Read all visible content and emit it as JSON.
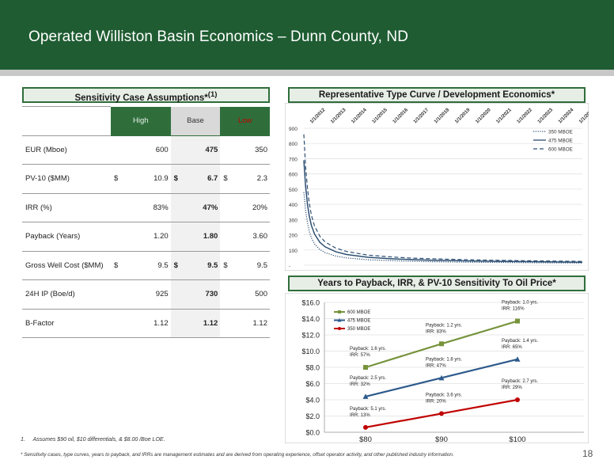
{
  "header": {
    "title": "Operated Williston Basin Economics – Dunn County, ND"
  },
  "assumptions": {
    "title": "Sensitivity Case Assumptions*",
    "title_sup": "(1)",
    "columns": [
      "High",
      "Base",
      "Low"
    ],
    "rows": [
      {
        "label": "EUR (Mboe)",
        "high": "600",
        "base": "475",
        "low": "350",
        "currency": false
      },
      {
        "label": "PV-10 ($MM)",
        "high": "10.9",
        "base": "6.7",
        "low": "2.3",
        "currency": true,
        "currency_symbol": "$"
      },
      {
        "label": "IRR (%)",
        "high": "83%",
        "base": "47%",
        "low": "20%",
        "currency": false
      },
      {
        "label": "Payback (Years)",
        "high": "1.20",
        "base": "1.80",
        "low": "3.60",
        "currency": false
      },
      {
        "label": "Gross Well Cost ($MM)",
        "high": "9.5",
        "base": "9.5",
        "low": "9.5",
        "currency": true,
        "currency_symbol": "$"
      },
      {
        "label": "24H IP (Boe/d)",
        "high": "925",
        "base": "730",
        "low": "500",
        "currency": false
      },
      {
        "label": "B-Factor",
        "high": "1.12",
        "base": "1.12",
        "low": "1.12",
        "currency": false
      }
    ]
  },
  "type_curve": {
    "title": "Representative Type Curve / Development Economics*"
  },
  "payback": {
    "title": "Years to Payback, IRR, & PV-10 Sensitivity To Oil Price*"
  },
  "chart_data": [
    {
      "type": "line",
      "x_tick_labels": [
        "1/1/2012",
        "1/1/2013",
        "1/1/2014",
        "1/1/2015",
        "1/1/2016",
        "1/1/2017",
        "1/1/2018",
        "1/1/2019",
        "1/1/2020",
        "1/1/2021",
        "1/1/2022",
        "1/1/2023",
        "1/1/2024",
        "1/1/2025"
      ],
      "y_ticks": [
        "-",
        "100",
        "200",
        "300",
        "400",
        "500",
        "600",
        "700",
        "800",
        "900"
      ],
      "ylim": [
        0,
        900
      ],
      "x_years": [
        0,
        0.083,
        0.17,
        0.25,
        0.35,
        0.5,
        0.75,
        1,
        1.5,
        2,
        3,
        4,
        5,
        6,
        8,
        10,
        13
      ],
      "series": [
        {
          "name": "350 MBOE",
          "style": "dotted",
          "color": "#2d4f73",
          "values": [
            480,
            360,
            280,
            225,
            180,
            140,
            102,
            82,
            60,
            48,
            36,
            30,
            26,
            23,
            19,
            17,
            14
          ]
        },
        {
          "name": "475 MBOE",
          "style": "solid",
          "color": "#2d4f73",
          "values": [
            690,
            520,
            400,
            325,
            262,
            205,
            150,
            120,
            88,
            70,
            52,
            43,
            37,
            33,
            27,
            24,
            20
          ]
        },
        {
          "name": "600 MBOE",
          "style": "dashed",
          "color": "#2d4f73",
          "values": [
            860,
            650,
            505,
            410,
            330,
            258,
            190,
            152,
            112,
            90,
            66,
            55,
            47,
            42,
            35,
            30,
            25
          ]
        }
      ],
      "legend": "top-right",
      "grid": true
    },
    {
      "type": "line",
      "categories": [
        "$80",
        "$90",
        "$100"
      ],
      "y_ticks": [
        "$0.0",
        "$2.0",
        "$4.0",
        "$6.0",
        "$8.0",
        "$10.0",
        "$12.0",
        "$14.0",
        "$16.0"
      ],
      "ylim": [
        0,
        16
      ],
      "series": [
        {
          "name": "600 MBOE",
          "color": "#77933c",
          "marker": "square",
          "values": [
            8.0,
            10.9,
            13.7
          ],
          "labels": [
            [
              "Payback: 1.6 yrs.",
              "IRR: 57%"
            ],
            [
              "Payback: 1.2 yrs.",
              "IRR: 83%"
            ],
            [
              "Payback: 1.0 yrs.",
              "IRR: 116%"
            ]
          ]
        },
        {
          "name": "475 MBOE",
          "color": "#2d5a8c",
          "marker": "triangle",
          "values": [
            4.4,
            6.7,
            9.0
          ],
          "labels": [
            [
              "Payback: 2.5 yrs.",
              "IRR: 32%"
            ],
            [
              "Payback: 1.8 yrs.",
              "IRR: 47%"
            ],
            [
              "Payback: 1.4 yrs.",
              "IRR: 65%"
            ]
          ]
        },
        {
          "name": "350 MBOE",
          "color": "#c00000",
          "marker": "circle",
          "values": [
            0.6,
            2.3,
            4.0
          ],
          "labels": [
            [
              "Payback: 5.1 yrs.",
              "IRR: 13%"
            ],
            [
              "Payback: 3.6 yrs.",
              "IRR: 20%"
            ],
            [
              "Payback: 2.7 yrs.",
              "IRR: 29%"
            ]
          ]
        }
      ],
      "legend": "top-left",
      "grid": true
    }
  ],
  "footnotes": {
    "note1_number": "1.",
    "note1": "Assumes $90 oil, $10 differentials, & $8.00 /Boe LOE.",
    "note2": "* Sensitivity cases, type curves, years to payback, and IRRs are management estimates and are derived from operating experience, offset operator activity, and other published industry information."
  },
  "page_number": "18"
}
